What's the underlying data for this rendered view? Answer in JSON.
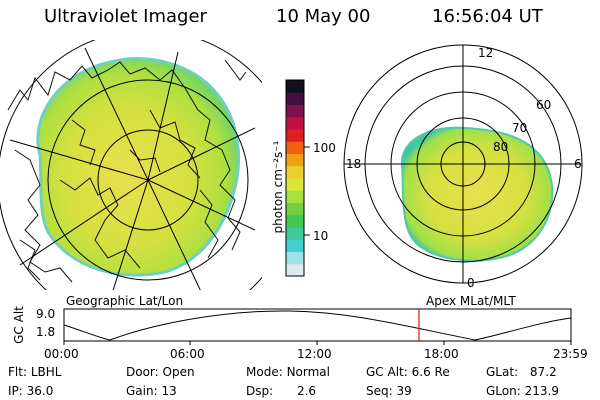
{
  "header": {
    "title": "Ultraviolet Imager",
    "date": "10 May 00",
    "time": "16:56:04 UT"
  },
  "left_panel": {
    "caption": "Geographic Lat/Lon"
  },
  "right_panel": {
    "caption": "Apex MLat/MLT",
    "lat_labels": [
      "60",
      "70",
      "80"
    ],
    "mlt_labels": [
      "12",
      "18",
      "6",
      "0"
    ]
  },
  "colorbar": {
    "unit_label": "photon cm⁻²s⁻¹",
    "tick_labels": [
      "100",
      "10"
    ],
    "colors": [
      "#101020",
      "#401040",
      "#801050",
      "#c01040",
      "#e02020",
      "#f06010",
      "#f0a010",
      "#e8d030",
      "#d8e838",
      "#a8e040",
      "#70d040",
      "#40c850",
      "#40c8a0",
      "#40d0d0",
      "#a0e0e8",
      "#e0e8f0"
    ]
  },
  "altitude_plot": {
    "ylabel": "GC Alt",
    "y_ticks": [
      "9.0",
      "1.8"
    ],
    "x_ticks": [
      "00:00",
      "06:00",
      "12:00",
      "18:00",
      "23:59"
    ],
    "marker_color": "#e01010"
  },
  "info": {
    "row1": [
      {
        "label": "Flt:",
        "value": "LBHL"
      },
      {
        "label": "Door:",
        "value": "Open"
      },
      {
        "label": "Mode:",
        "value": "Normal"
      },
      {
        "label": "GC Alt:",
        "value": "6.6 Re"
      },
      {
        "label": "GLat:",
        "value": "87.2"
      }
    ],
    "row2": [
      {
        "label": "IP:",
        "value": "36.0"
      },
      {
        "label": "Gain:",
        "value": "13"
      },
      {
        "label": "Dsp:",
        "value": "2.6"
      },
      {
        "label": "Seq:",
        "value": "39"
      },
      {
        "label": "GLon:",
        "value": "213.9"
      }
    ]
  }
}
